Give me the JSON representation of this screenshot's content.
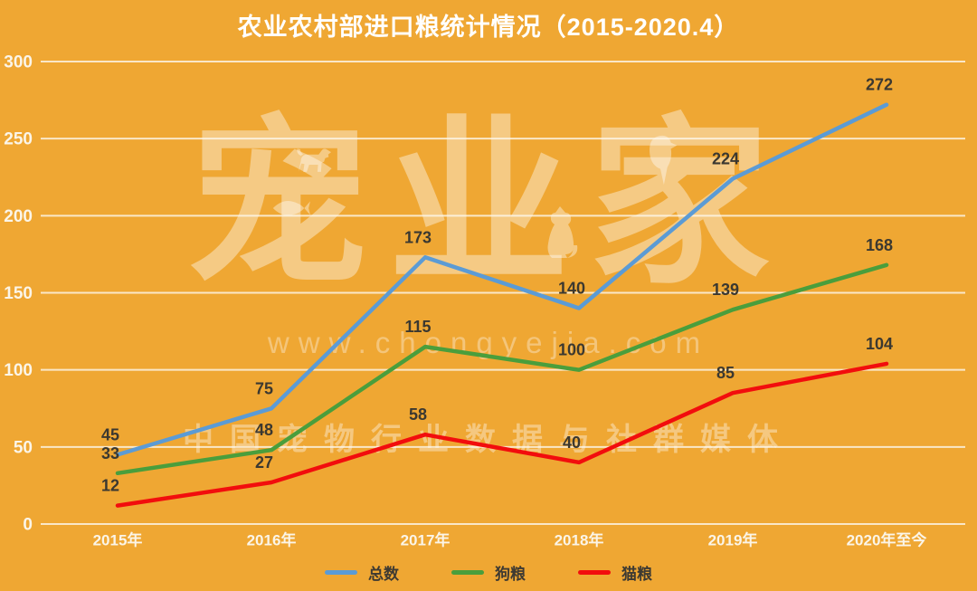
{
  "title": "农业农村部进口粮统计情况（2015-2020.4）",
  "watermark": {
    "brand": "宠业家",
    "url": "www.chongyejia.com",
    "tagline": "中国宠物行业数据与社群媒体",
    "icons": [
      "dog-silhouette-icon",
      "fish-silhouette-icon",
      "cat-silhouette-icon",
      "bird-silhouette-icon"
    ]
  },
  "colors": {
    "background": "#EFA733",
    "title_text": "#FFFFFF",
    "grid": "rgba(253,248,238,0.8)",
    "axis_text": "#FBF5E8",
    "data_label": "#3b3830",
    "total": "#5B9BD5",
    "dog": "#4A9E3C",
    "cat": "#F20D0D"
  },
  "chart_data": {
    "type": "line",
    "title": "农业农村部进口粮统计情况（2015-2020.4）",
    "categories": [
      "2015年",
      "2016年",
      "2017年",
      "2018年",
      "2019年",
      "2020年至今"
    ],
    "series": [
      {
        "key": "total",
        "name": "总数",
        "color_key": "total",
        "values": [
          45,
          75,
          173,
          140,
          224,
          272
        ]
      },
      {
        "key": "dog",
        "name": "狗粮",
        "color_key": "dog",
        "values": [
          33,
          48,
          115,
          100,
          139,
          168
        ]
      },
      {
        "key": "cat",
        "name": "猫粮",
        "color_key": "cat",
        "values": [
          12,
          27,
          58,
          40,
          85,
          104
        ]
      }
    ],
    "xlabel": "",
    "ylabel": "",
    "ylim": [
      0,
      300
    ],
    "ytick_step": 50,
    "yticks": [
      "0",
      "50",
      "100",
      "150",
      "200",
      "250",
      "300"
    ],
    "grid": "horizontal",
    "show_point_labels": true,
    "legend_position": "bottom"
  },
  "legend": {
    "items": [
      {
        "label": "总数",
        "color_key": "total"
      },
      {
        "label": "狗粮",
        "color_key": "dog"
      },
      {
        "label": "猫粮",
        "color_key": "cat"
      }
    ]
  }
}
